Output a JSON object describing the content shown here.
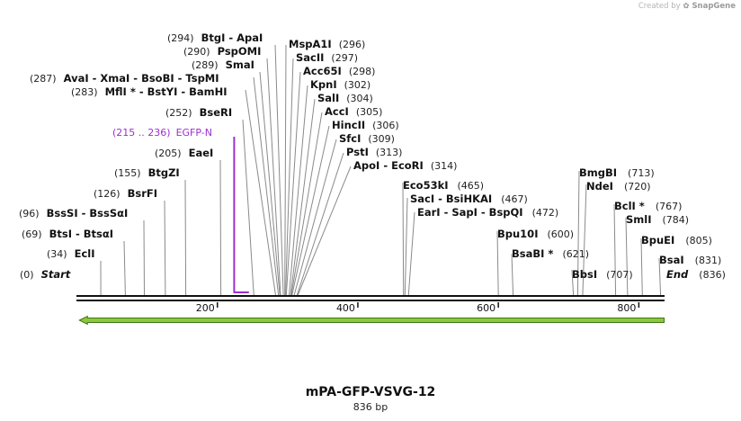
{
  "credit": {
    "prefix": "Created by",
    "brand": "SnapGene"
  },
  "plasmid": {
    "name": "mPA-GFP-VSVG-12",
    "length_label": "836 bp",
    "length": 836
  },
  "axis": {
    "ticks": [
      200,
      400,
      600,
      800
    ]
  },
  "feature": {
    "range": "(215 .. 236)",
    "name": "EGFP-N",
    "color": "#9b30d0",
    "start": 215,
    "end": 236
  },
  "orf": {
    "start": 836,
    "end": 1,
    "direction": "reverse",
    "color": "#8ec63f"
  },
  "sites": [
    {
      "label": "Start",
      "pos": "(0)",
      "bp": 0
    },
    {
      "label": "EclI",
      "pos": "(34)",
      "bp": 34
    },
    {
      "label": "BtsI - BtsαI",
      "pos": "(69)",
      "bp": 69
    },
    {
      "label": "BssSI - BssSαI",
      "pos": "(96)",
      "bp": 96
    },
    {
      "label": "BsrFI",
      "pos": "(126)",
      "bp": 126
    },
    {
      "label": "BtgZI",
      "pos": "(155)",
      "bp": 155
    },
    {
      "label": "EaeI",
      "pos": "(205)",
      "bp": 205
    },
    {
      "label": "BseRI",
      "pos": "(252)",
      "bp": 252
    },
    {
      "label": "MflI * - BstYI - BamHI",
      "pos": "(283)",
      "bp": 283
    },
    {
      "label": "AvaI - XmaI - BsoBI - TspMI",
      "pos": "(287)",
      "bp": 287
    },
    {
      "label": "SmaI",
      "pos": "(289)",
      "bp": 289
    },
    {
      "label": "PspOMI",
      "pos": "(290)",
      "bp": 290
    },
    {
      "label": "BtgI - ApaI",
      "pos": "(294)",
      "bp": 294
    },
    {
      "label": "MspA1I",
      "pos": "(296)",
      "bp": 296
    },
    {
      "label": "SacII",
      "pos": "(297)",
      "bp": 297
    },
    {
      "label": "Acc65I",
      "pos": "(298)",
      "bp": 298
    },
    {
      "label": "KpnI",
      "pos": "(302)",
      "bp": 302
    },
    {
      "label": "SalI",
      "pos": "(304)",
      "bp": 304
    },
    {
      "label": "AccI",
      "pos": "(305)",
      "bp": 305
    },
    {
      "label": "HincII",
      "pos": "(306)",
      "bp": 306
    },
    {
      "label": "SfcI",
      "pos": "(309)",
      "bp": 309
    },
    {
      "label": "PstI",
      "pos": "(313)",
      "bp": 313
    },
    {
      "label": "ApoI - EcoRI",
      "pos": "(314)",
      "bp": 314
    },
    {
      "label": "Eco53kI",
      "pos": "(465)",
      "bp": 465
    },
    {
      "label": "SacI - BsiHKAI",
      "pos": "(467)",
      "bp": 467
    },
    {
      "label": "EarI - SapI - BspQI",
      "pos": "(472)",
      "bp": 472
    },
    {
      "label": "Bpu10I",
      "pos": "(600)",
      "bp": 600
    },
    {
      "label": "BsaBI *",
      "pos": "(621)",
      "bp": 621
    },
    {
      "label": "BmgBI",
      "pos": "(713)",
      "bp": 713
    },
    {
      "label": "NdeI",
      "pos": "(720)",
      "bp": 720
    },
    {
      "label": "BbsI",
      "pos": "(707)",
      "bp": 707
    },
    {
      "label": "BclI *",
      "pos": "(767)",
      "bp": 767
    },
    {
      "label": "SmlI",
      "pos": "(784)",
      "bp": 784
    },
    {
      "label": "BpuEI",
      "pos": "(805)",
      "bp": 805
    },
    {
      "label": "BsaI",
      "pos": "(831)",
      "bp": 831
    },
    {
      "label": "End",
      "pos": "(836)",
      "bp": 836
    }
  ]
}
